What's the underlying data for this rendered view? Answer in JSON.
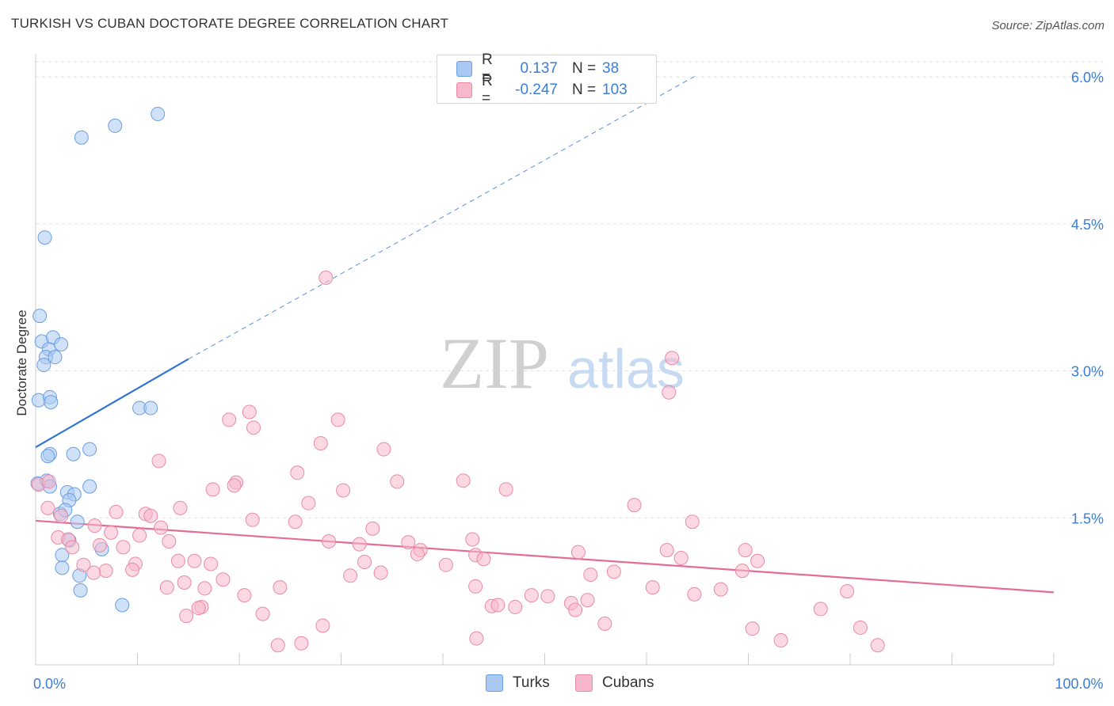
{
  "title": "TURKISH VS CUBAN DOCTORATE DEGREE CORRELATION CHART",
  "source": "Source: ZipAtlas.com",
  "watermark": {
    "zip": "ZIP",
    "atlas": "atlas"
  },
  "legend": {
    "rows": [
      {
        "r_label": "R =",
        "r_value": "0.137",
        "n_label": "N =",
        "n_value": "38",
        "color": "#a9c8f2",
        "border": "#6a9fe0"
      },
      {
        "r_label": "R =",
        "r_value": "-0.247",
        "n_label": "N =",
        "n_value": "103",
        "color": "#f7b8cb",
        "border": "#e98aa8"
      }
    ]
  },
  "bottom_legend": [
    {
      "label": "Turks",
      "color": "#a9c8f2",
      "border": "#6a9fe0"
    },
    {
      "label": "Cubans",
      "color": "#f7b8cb",
      "border": "#e98aa8"
    }
  ],
  "chart_data": {
    "type": "scatter",
    "title": "TURKISH VS CUBAN DOCTORATE DEGREE CORRELATION CHART",
    "xlabel": "",
    "ylabel": "Doctorate Degree",
    "xlim": [
      0,
      100
    ],
    "ylim": [
      0,
      6.0
    ],
    "x_tick_labels": [
      {
        "value": 0,
        "label": "0.0%"
      },
      {
        "value": 100,
        "label": "100.0%"
      }
    ],
    "y_tick_labels": [
      {
        "value": 1.5,
        "label": "1.5%"
      },
      {
        "value": 3.0,
        "label": "3.0%"
      },
      {
        "value": 4.5,
        "label": "4.5%"
      },
      {
        "value": 6.0,
        "label": "6.0%"
      }
    ],
    "series": [
      {
        "name": "Turks",
        "color": "#a9c8f2",
        "edge": "#6a9fe0",
        "line_color": "#3173d0",
        "trend": {
          "x": [
            0,
            15
          ],
          "y": [
            2.22,
            3.12
          ],
          "extended_to": [
            65,
            6.02
          ]
        },
        "points": [
          [
            4.5,
            5.38
          ],
          [
            7.8,
            5.5
          ],
          [
            12.0,
            5.62
          ],
          [
            0.9,
            4.36
          ],
          [
            0.4,
            3.56
          ],
          [
            0.6,
            3.3
          ],
          [
            1.7,
            3.34
          ],
          [
            2.5,
            3.27
          ],
          [
            1.3,
            3.22
          ],
          [
            1.0,
            3.14
          ],
          [
            1.9,
            3.14
          ],
          [
            0.8,
            3.06
          ],
          [
            0.3,
            2.7
          ],
          [
            1.4,
            2.73
          ],
          [
            1.5,
            2.68
          ],
          [
            10.2,
            2.62
          ],
          [
            11.3,
            2.62
          ],
          [
            5.3,
            2.2
          ],
          [
            1.4,
            2.15
          ],
          [
            3.7,
            2.15
          ],
          [
            1.2,
            2.13
          ],
          [
            0.2,
            1.85
          ],
          [
            1.1,
            1.88
          ],
          [
            1.4,
            1.82
          ],
          [
            5.3,
            1.82
          ],
          [
            3.1,
            1.76
          ],
          [
            3.8,
            1.74
          ],
          [
            3.3,
            1.68
          ],
          [
            2.4,
            1.54
          ],
          [
            2.9,
            1.58
          ],
          [
            4.1,
            1.46
          ],
          [
            3.3,
            1.27
          ],
          [
            6.5,
            1.18
          ],
          [
            2.6,
            1.12
          ],
          [
            2.6,
            0.99
          ],
          [
            4.3,
            0.91
          ],
          [
            4.4,
            0.76
          ],
          [
            8.5,
            0.61
          ]
        ]
      },
      {
        "name": "Cubans",
        "color": "#f7b8cb",
        "edge": "#e98aa8",
        "line_color": "#e36d97",
        "trend": {
          "x": [
            0,
            100
          ],
          "y": [
            1.47,
            0.74
          ]
        },
        "points": [
          [
            28.5,
            3.95
          ],
          [
            62.5,
            3.13
          ],
          [
            62.2,
            2.78
          ],
          [
            21.0,
            2.58
          ],
          [
            19.0,
            2.5
          ],
          [
            29.7,
            2.5
          ],
          [
            21.4,
            2.42
          ],
          [
            28.0,
            2.26
          ],
          [
            34.2,
            2.2
          ],
          [
            12.1,
            2.08
          ],
          [
            25.7,
            1.96
          ],
          [
            35.5,
            1.87
          ],
          [
            42.0,
            1.88
          ],
          [
            19.7,
            1.86
          ],
          [
            19.5,
            1.83
          ],
          [
            17.4,
            1.79
          ],
          [
            30.2,
            1.78
          ],
          [
            46.2,
            1.79
          ],
          [
            0.3,
            1.84
          ],
          [
            1.3,
            1.87
          ],
          [
            26.8,
            1.65
          ],
          [
            58.8,
            1.63
          ],
          [
            14.2,
            1.6
          ],
          [
            1.2,
            1.6
          ],
          [
            7.9,
            1.56
          ],
          [
            10.8,
            1.54
          ],
          [
            11.3,
            1.52
          ],
          [
            2.5,
            1.52
          ],
          [
            21.3,
            1.48
          ],
          [
            25.5,
            1.46
          ],
          [
            64.5,
            1.46
          ],
          [
            12.3,
            1.4
          ],
          [
            33.1,
            1.39
          ],
          [
            5.8,
            1.42
          ],
          [
            7.4,
            1.35
          ],
          [
            10.2,
            1.32
          ],
          [
            2.2,
            1.3
          ],
          [
            3.2,
            1.28
          ],
          [
            13.1,
            1.26
          ],
          [
            28.8,
            1.26
          ],
          [
            42.9,
            1.28
          ],
          [
            36.6,
            1.25
          ],
          [
            31.8,
            1.23
          ],
          [
            8.6,
            1.2
          ],
          [
            6.3,
            1.22
          ],
          [
            37.8,
            1.17
          ],
          [
            37.5,
            1.13
          ],
          [
            53.3,
            1.15
          ],
          [
            62.0,
            1.17
          ],
          [
            69.7,
            1.17
          ],
          [
            43.2,
            1.12
          ],
          [
            44.0,
            1.08
          ],
          [
            3.6,
            1.2
          ],
          [
            14.0,
            1.06
          ],
          [
            63.4,
            1.09
          ],
          [
            70.9,
            1.06
          ],
          [
            9.8,
            1.03
          ],
          [
            17.2,
            1.03
          ],
          [
            32.3,
            1.05
          ],
          [
            4.7,
            1.02
          ],
          [
            40.3,
            1.02
          ],
          [
            6.9,
            0.96
          ],
          [
            5.7,
            0.94
          ],
          [
            33.9,
            0.94
          ],
          [
            30.9,
            0.91
          ],
          [
            18.4,
            0.87
          ],
          [
            54.5,
            0.92
          ],
          [
            56.8,
            0.95
          ],
          [
            69.4,
            0.96
          ],
          [
            14.6,
            0.84
          ],
          [
            12.9,
            0.79
          ],
          [
            24.0,
            0.79
          ],
          [
            43.2,
            0.8
          ],
          [
            60.6,
            0.79
          ],
          [
            16.6,
            0.78
          ],
          [
            67.3,
            0.77
          ],
          [
            20.5,
            0.71
          ],
          [
            48.7,
            0.71
          ],
          [
            64.7,
            0.72
          ],
          [
            79.7,
            0.75
          ],
          [
            54.2,
            0.66
          ],
          [
            52.6,
            0.63
          ],
          [
            44.8,
            0.6
          ],
          [
            45.4,
            0.61
          ],
          [
            16.3,
            0.59
          ],
          [
            16.0,
            0.58
          ],
          [
            53.0,
            0.56
          ],
          [
            77.1,
            0.57
          ],
          [
            22.3,
            0.52
          ],
          [
            14.8,
            0.5
          ],
          [
            55.9,
            0.42
          ],
          [
            28.2,
            0.4
          ],
          [
            70.4,
            0.37
          ],
          [
            81.0,
            0.38
          ],
          [
            43.3,
            0.27
          ],
          [
            73.2,
            0.25
          ],
          [
            82.7,
            0.2
          ],
          [
            23.8,
            0.2
          ],
          [
            26.1,
            0.22
          ],
          [
            47.1,
            0.59
          ],
          [
            50.3,
            0.7
          ],
          [
            9.5,
            0.97
          ],
          [
            15.6,
            1.06
          ]
        ]
      }
    ],
    "grid": true,
    "legend_position": "top-center"
  }
}
